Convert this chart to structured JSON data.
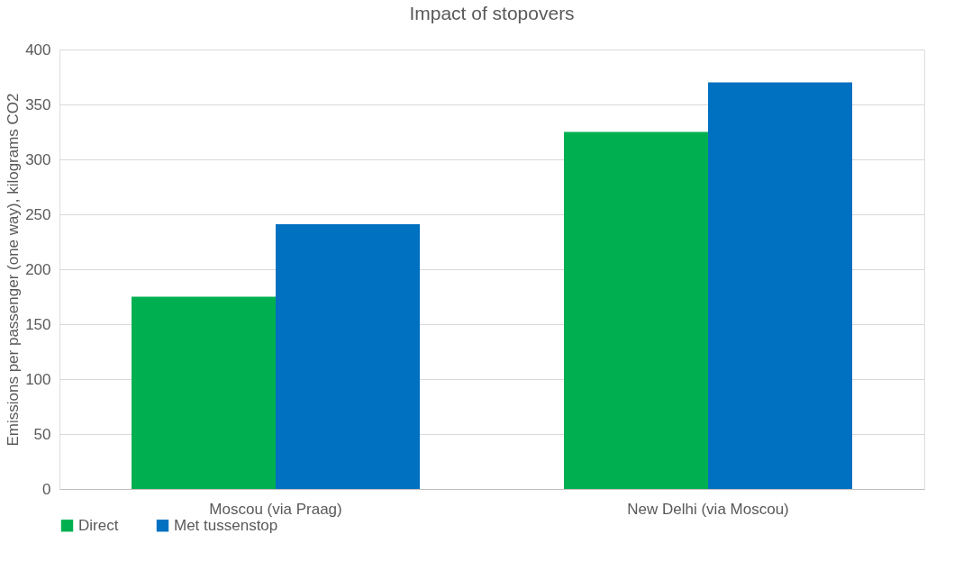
{
  "chart_data": {
    "type": "bar",
    "title": "Impact of stopovers",
    "ylabel": "Emissions per passenger (one way), kilograms CO2",
    "categories": [
      "Moscou (via Praag)",
      "New Delhi (via Moscou)"
    ],
    "series": [
      {
        "name": "Direct",
        "color": "#00b050",
        "values": [
          175,
          325
        ]
      },
      {
        "name": "Met tussenstop",
        "color": "#0070c0",
        "values": [
          241,
          370
        ]
      }
    ],
    "ylim": [
      0,
      400
    ],
    "yticks": [
      0,
      50,
      100,
      150,
      200,
      250,
      300,
      350,
      400
    ],
    "grid": "y",
    "legend": "bottom"
  }
}
